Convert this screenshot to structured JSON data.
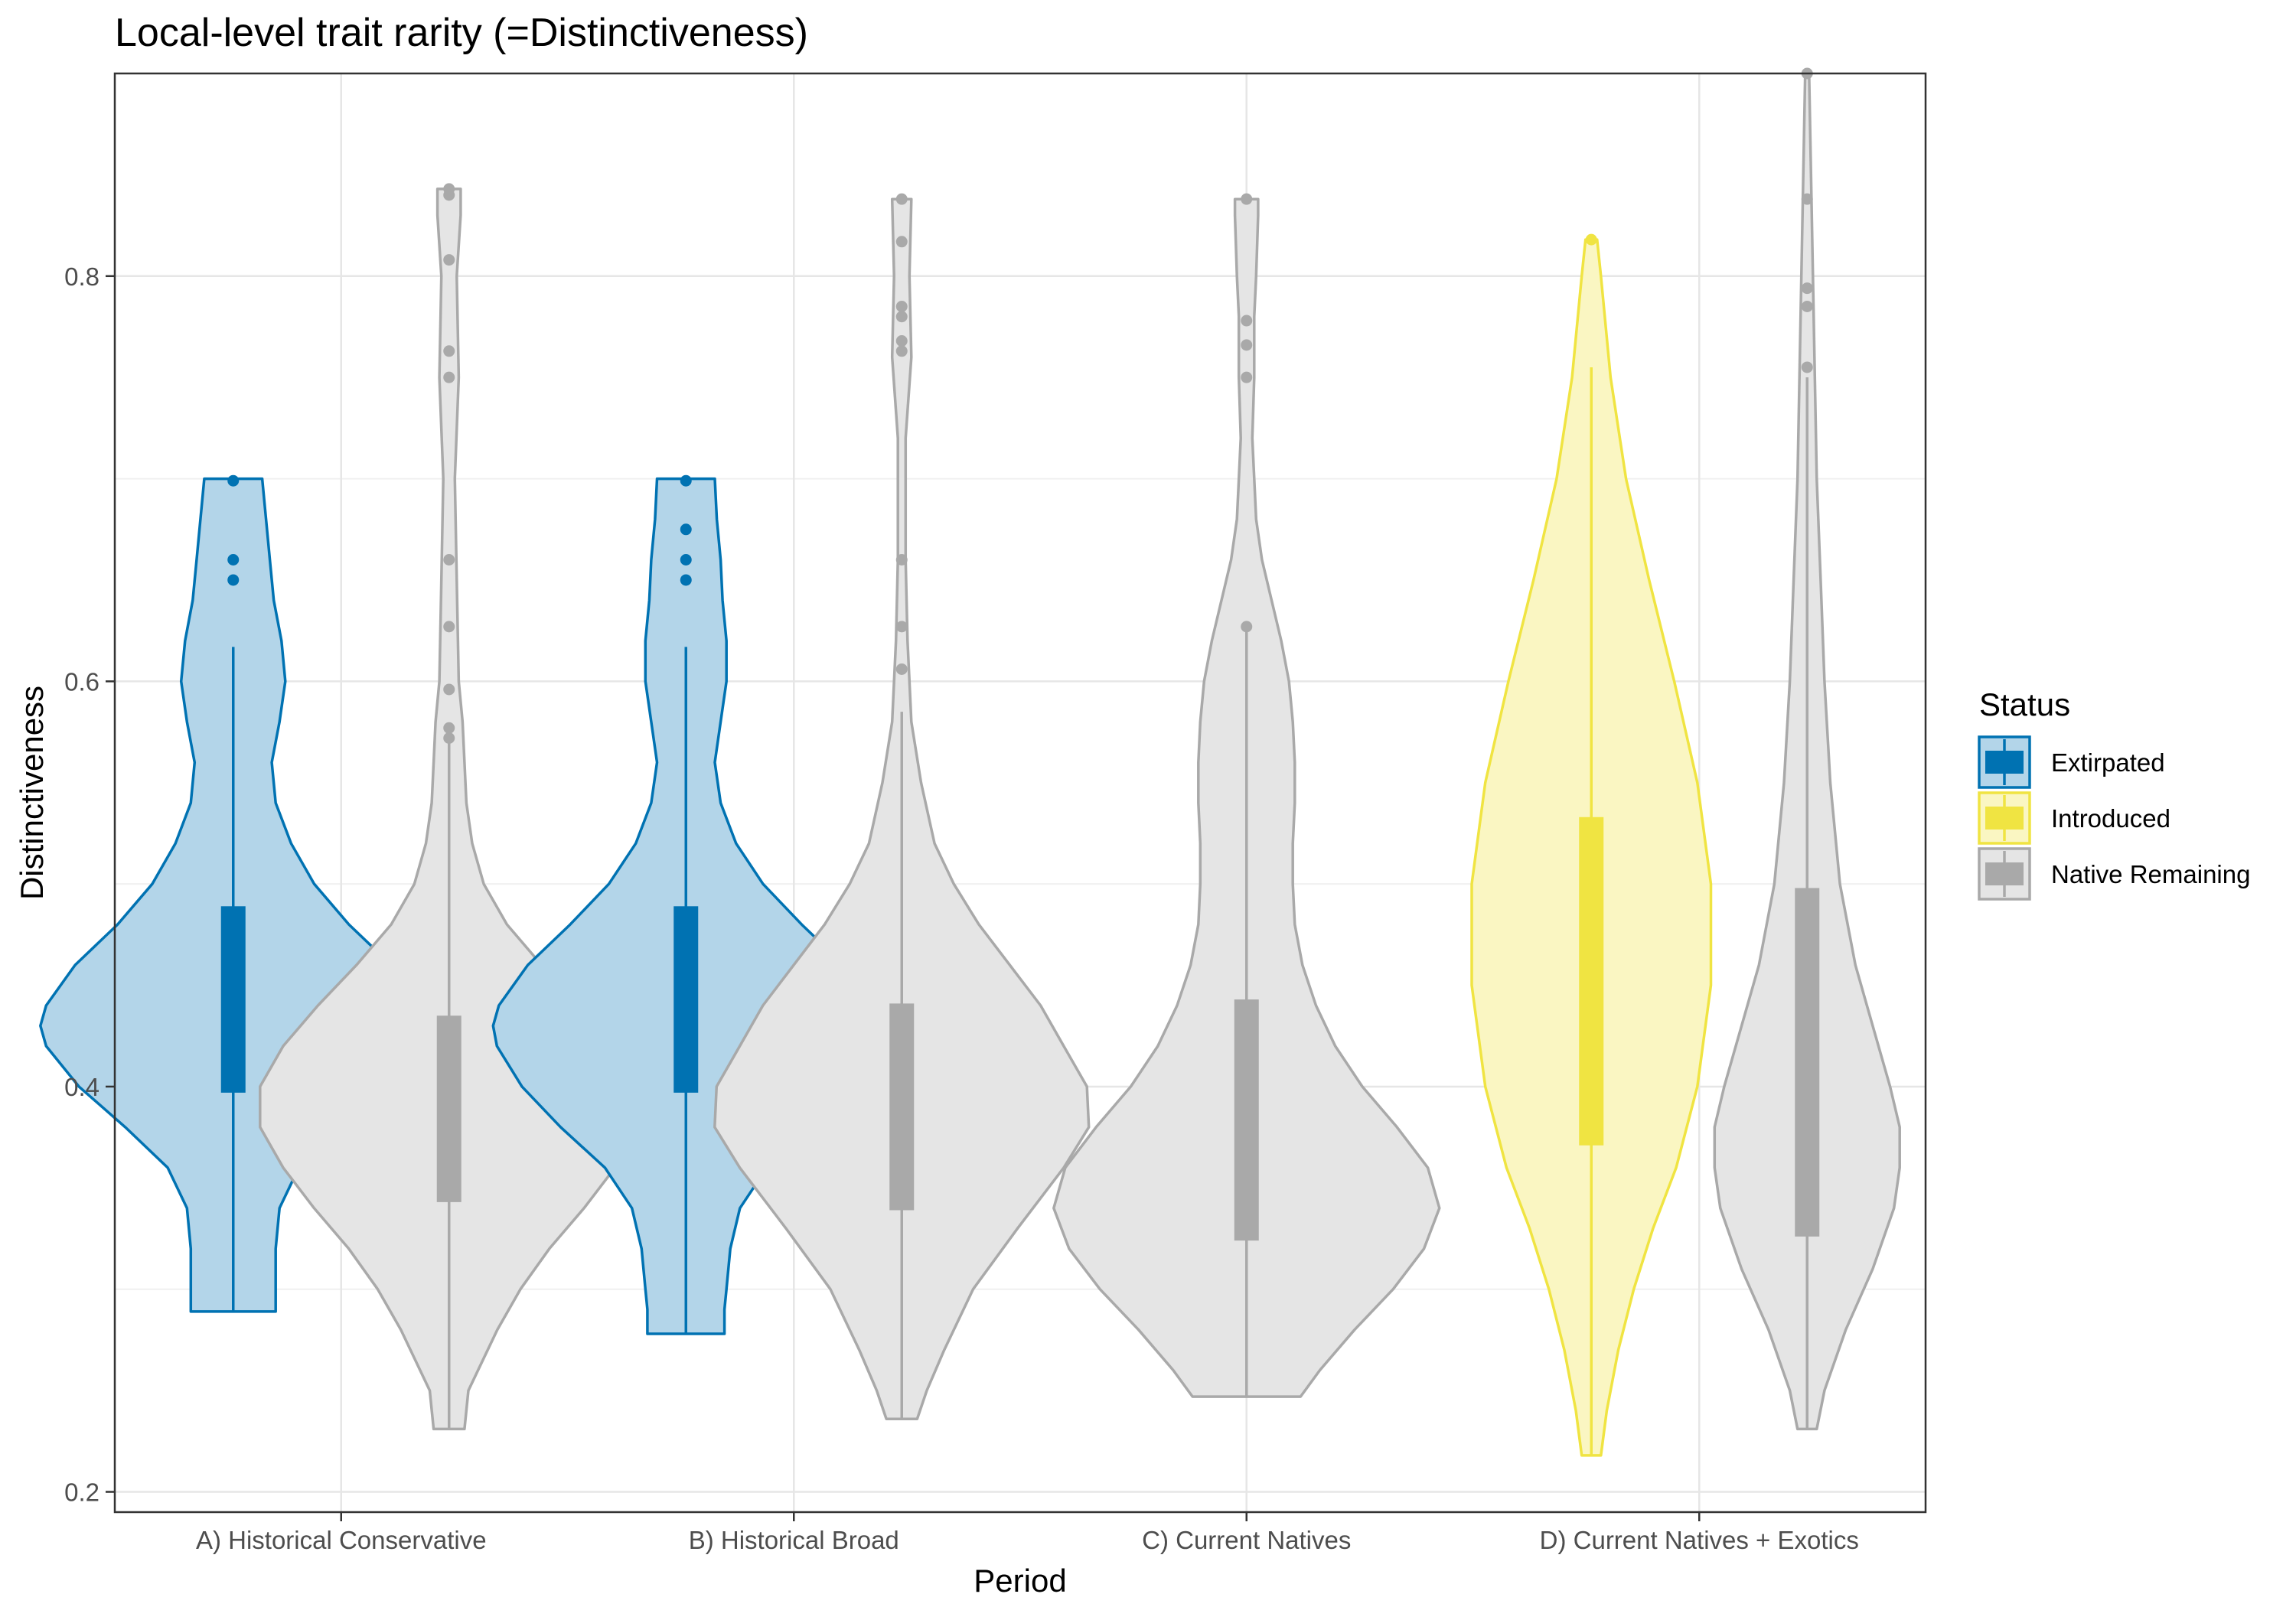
{
  "chart_data": {
    "type": "violin",
    "title": "Local-level trait rarity (=Distinctiveness)",
    "xlabel": "Period",
    "ylabel": "Distinctiveness",
    "ylim": [
      0.19,
      0.9
    ],
    "y_ticks": [
      0.2,
      0.4,
      0.6,
      0.8
    ],
    "y_tick_labels": [
      "0.2",
      "0.4",
      "0.6",
      "0.8"
    ],
    "grid": true,
    "legend_position": "right",
    "categories": [
      "A) Historical Conservative",
      "B) Historical Broad",
      "C) Current Natives",
      "D) Current Natives + Exotics"
    ],
    "legend": {
      "title": "Status",
      "entries": [
        {
          "name": "Extirpated",
          "fill": "#b3d5e9",
          "stroke": "#0072b2"
        },
        {
          "name": "Introduced",
          "fill": "#faf6c2",
          "stroke": "#f0e442"
        },
        {
          "name": "Native Remaining",
          "fill": "#e5e5e5",
          "stroke": "#a9a9a9"
        }
      ]
    },
    "groups": [
      {
        "category": "A) Historical Conservative",
        "status": "Extirpated",
        "side": "left",
        "min": 0.289,
        "max": 0.7,
        "q1": 0.397,
        "q3": 0.489,
        "whisker_low": 0.289,
        "whisker_high": 0.617,
        "density": [
          [
            0.289,
            0.22
          ],
          [
            0.3,
            0.22
          ],
          [
            0.32,
            0.22
          ],
          [
            0.34,
            0.24
          ],
          [
            0.36,
            0.34
          ],
          [
            0.38,
            0.56
          ],
          [
            0.4,
            0.8
          ],
          [
            0.42,
            0.97
          ],
          [
            0.43,
            1.0
          ],
          [
            0.44,
            0.97
          ],
          [
            0.46,
            0.82
          ],
          [
            0.48,
            0.6
          ],
          [
            0.5,
            0.42
          ],
          [
            0.52,
            0.3
          ],
          [
            0.54,
            0.22
          ],
          [
            0.56,
            0.2
          ],
          [
            0.58,
            0.24
          ],
          [
            0.6,
            0.27
          ],
          [
            0.62,
            0.25
          ],
          [
            0.64,
            0.21
          ],
          [
            0.66,
            0.19
          ],
          [
            0.68,
            0.17
          ],
          [
            0.7,
            0.15
          ]
        ],
        "outliers": [
          0.699,
          0.66,
          0.65
        ]
      },
      {
        "category": "A) Historical Conservative",
        "status": "Native Remaining",
        "side": "right",
        "min": 0.231,
        "max": 0.843,
        "q1": 0.343,
        "q3": 0.435,
        "whisker_low": 0.231,
        "whisker_high": 0.57,
        "density": [
          [
            0.231,
            0.08
          ],
          [
            0.25,
            0.1
          ],
          [
            0.28,
            0.25
          ],
          [
            0.3,
            0.37
          ],
          [
            0.32,
            0.52
          ],
          [
            0.34,
            0.7
          ],
          [
            0.36,
            0.86
          ],
          [
            0.38,
            0.98
          ],
          [
            0.4,
            0.98
          ],
          [
            0.42,
            0.86
          ],
          [
            0.44,
            0.68
          ],
          [
            0.46,
            0.48
          ],
          [
            0.48,
            0.3
          ],
          [
            0.5,
            0.18
          ],
          [
            0.52,
            0.12
          ],
          [
            0.54,
            0.09
          ],
          [
            0.56,
            0.08
          ],
          [
            0.58,
            0.07
          ],
          [
            0.6,
            0.05
          ],
          [
            0.65,
            0.04
          ],
          [
            0.7,
            0.03
          ],
          [
            0.75,
            0.05
          ],
          [
            0.8,
            0.04
          ],
          [
            0.83,
            0.06
          ],
          [
            0.843,
            0.06
          ]
        ],
        "outliers": [
          0.843,
          0.84,
          0.808,
          0.763,
          0.75,
          0.66,
          0.627,
          0.596,
          0.577,
          0.572
        ]
      },
      {
        "category": "B) Historical Broad",
        "status": "Extirpated",
        "side": "left",
        "min": 0.278,
        "max": 0.7,
        "q1": 0.397,
        "q3": 0.489,
        "whisker_low": 0.278,
        "whisker_high": 0.617,
        "density": [
          [
            0.278,
            0.2
          ],
          [
            0.29,
            0.2
          ],
          [
            0.3,
            0.21
          ],
          [
            0.32,
            0.23
          ],
          [
            0.34,
            0.28
          ],
          [
            0.36,
            0.42
          ],
          [
            0.38,
            0.65
          ],
          [
            0.4,
            0.85
          ],
          [
            0.42,
            0.98
          ],
          [
            0.43,
            1.0
          ],
          [
            0.44,
            0.97
          ],
          [
            0.46,
            0.82
          ],
          [
            0.48,
            0.6
          ],
          [
            0.5,
            0.4
          ],
          [
            0.52,
            0.26
          ],
          [
            0.54,
            0.18
          ],
          [
            0.56,
            0.15
          ],
          [
            0.58,
            0.18
          ],
          [
            0.6,
            0.21
          ],
          [
            0.62,
            0.21
          ],
          [
            0.64,
            0.19
          ],
          [
            0.66,
            0.18
          ],
          [
            0.68,
            0.16
          ],
          [
            0.7,
            0.15
          ]
        ],
        "outliers": [
          0.699,
          0.675,
          0.66,
          0.65
        ]
      },
      {
        "category": "B) Historical Broad",
        "status": "Native Remaining",
        "side": "right",
        "min": 0.236,
        "max": 0.838,
        "q1": 0.339,
        "q3": 0.441,
        "whisker_low": 0.236,
        "whisker_high": 0.585,
        "density": [
          [
            0.236,
            0.08
          ],
          [
            0.25,
            0.13
          ],
          [
            0.27,
            0.22
          ],
          [
            0.3,
            0.37
          ],
          [
            0.33,
            0.6
          ],
          [
            0.36,
            0.84
          ],
          [
            0.38,
            0.97
          ],
          [
            0.4,
            0.96
          ],
          [
            0.42,
            0.84
          ],
          [
            0.44,
            0.72
          ],
          [
            0.46,
            0.56
          ],
          [
            0.48,
            0.4
          ],
          [
            0.5,
            0.27
          ],
          [
            0.52,
            0.17
          ],
          [
            0.55,
            0.1
          ],
          [
            0.58,
            0.05
          ],
          [
            0.62,
            0.03
          ],
          [
            0.66,
            0.02
          ],
          [
            0.72,
            0.02
          ],
          [
            0.76,
            0.05
          ],
          [
            0.8,
            0.04
          ],
          [
            0.838,
            0.05
          ]
        ],
        "outliers": [
          0.838,
          0.817,
          0.785,
          0.78,
          0.768,
          0.763,
          0.66,
          0.627,
          0.606
        ]
      },
      {
        "category": "C) Current Natives",
        "status": "Native Remaining",
        "side": "center",
        "min": 0.247,
        "max": 0.838,
        "q1": 0.324,
        "q3": 0.443,
        "whisker_low": 0.247,
        "whisker_high": 0.627,
        "density": [
          [
            0.247,
            0.28
          ],
          [
            0.26,
            0.38
          ],
          [
            0.28,
            0.56
          ],
          [
            0.3,
            0.76
          ],
          [
            0.32,
            0.92
          ],
          [
            0.34,
            1.0
          ],
          [
            0.36,
            0.94
          ],
          [
            0.38,
            0.78
          ],
          [
            0.4,
            0.6
          ],
          [
            0.42,
            0.46
          ],
          [
            0.44,
            0.36
          ],
          [
            0.46,
            0.29
          ],
          [
            0.48,
            0.25
          ],
          [
            0.5,
            0.24
          ],
          [
            0.52,
            0.24
          ],
          [
            0.54,
            0.25
          ],
          [
            0.56,
            0.25
          ],
          [
            0.58,
            0.24
          ],
          [
            0.6,
            0.22
          ],
          [
            0.62,
            0.18
          ],
          [
            0.64,
            0.13
          ],
          [
            0.66,
            0.08
          ],
          [
            0.68,
            0.05
          ],
          [
            0.72,
            0.03
          ],
          [
            0.75,
            0.04
          ],
          [
            0.78,
            0.04
          ],
          [
            0.8,
            0.05
          ],
          [
            0.83,
            0.06
          ],
          [
            0.838,
            0.06
          ]
        ],
        "outliers": [
          0.838,
          0.778,
          0.766,
          0.75,
          0.627
        ]
      },
      {
        "category": "D) Current Natives + Exotics",
        "status": "Introduced",
        "side": "left",
        "min": 0.218,
        "max": 0.818,
        "q1": 0.371,
        "q3": 0.533,
        "whisker_low": 0.218,
        "whisker_high": 0.755,
        "density": [
          [
            0.218,
            0.05
          ],
          [
            0.24,
            0.08
          ],
          [
            0.27,
            0.14
          ],
          [
            0.3,
            0.22
          ],
          [
            0.33,
            0.32
          ],
          [
            0.36,
            0.44
          ],
          [
            0.4,
            0.55
          ],
          [
            0.45,
            0.62
          ],
          [
            0.5,
            0.62
          ],
          [
            0.55,
            0.55
          ],
          [
            0.6,
            0.43
          ],
          [
            0.65,
            0.3
          ],
          [
            0.7,
            0.18
          ],
          [
            0.75,
            0.1
          ],
          [
            0.8,
            0.05
          ],
          [
            0.818,
            0.03
          ]
        ],
        "outliers": [
          0.818
        ]
      },
      {
        "category": "D) Current Natives + Exotics",
        "status": "Native Remaining",
        "side": "right",
        "min": 0.231,
        "max": 0.9,
        "q1": 0.326,
        "q3": 0.498,
        "whisker_low": 0.231,
        "whisker_high": 0.75,
        "density": [
          [
            0.231,
            0.05
          ],
          [
            0.25,
            0.09
          ],
          [
            0.28,
            0.2
          ],
          [
            0.31,
            0.34
          ],
          [
            0.34,
            0.45
          ],
          [
            0.36,
            0.48
          ],
          [
            0.38,
            0.48
          ],
          [
            0.4,
            0.43
          ],
          [
            0.43,
            0.34
          ],
          [
            0.46,
            0.25
          ],
          [
            0.5,
            0.17
          ],
          [
            0.55,
            0.12
          ],
          [
            0.6,
            0.09
          ],
          [
            0.65,
            0.07
          ],
          [
            0.7,
            0.05
          ],
          [
            0.75,
            0.04
          ],
          [
            0.8,
            0.03
          ],
          [
            0.85,
            0.02
          ],
          [
            0.9,
            0.01
          ]
        ],
        "outliers": [
          0.9,
          0.838,
          0.794,
          0.785,
          0.755
        ]
      }
    ]
  }
}
